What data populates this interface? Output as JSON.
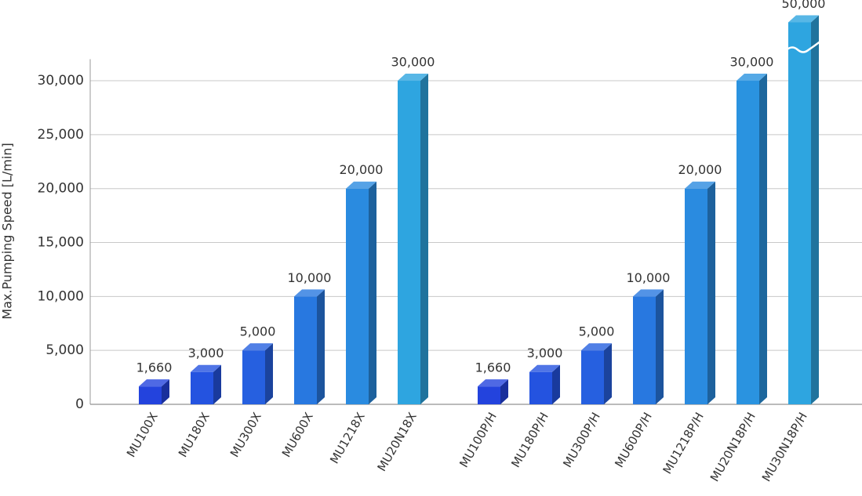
{
  "chart_data": {
    "type": "bar3d",
    "ylabel": "Max.Pumping Speed [L/min]",
    "ylim": [
      0,
      32000
    ],
    "yticks": [
      0,
      {
        "value": 5000,
        "label": "5,000"
      },
      {
        "value": 10000,
        "label": "10,000"
      },
      {
        "value": 15000,
        "label": "15,000"
      },
      {
        "value": 20000,
        "label": "20,000"
      },
      {
        "value": 25000,
        "label": "25,000"
      },
      {
        "value": 30000,
        "label": "30,000"
      }
    ],
    "grid": true,
    "groups": [
      {
        "categories": [
          "MU100X",
          "MU180X",
          "MU300X",
          "MU600X",
          "MU1218X",
          "MU20N18X"
        ],
        "values": [
          1660,
          3000,
          5000,
          10000,
          20000,
          30000
        ],
        "value_labels": [
          "1,660",
          "3,000",
          "5,000",
          "10,000",
          "20,000",
          "30,000"
        ],
        "colors": [
          "#2343dd",
          "#2453e0",
          "#2660e0",
          "#2878e0",
          "#2a8be0",
          "#2ea5e0"
        ]
      },
      {
        "categories": [
          "MU100P/H",
          "MU180P/H",
          "MU300P/H",
          "MU600P/H",
          "MU1218P/H",
          "MU20N18P/H",
          "MU30N18P/H"
        ],
        "values": [
          1660,
          3000,
          5000,
          10000,
          20000,
          30000,
          50000
        ],
        "value_labels": [
          "1,660",
          "3,000",
          "5,000",
          "10,000",
          "20,000",
          "30,000",
          "50,000"
        ],
        "colors": [
          "#2343dd",
          "#2453e0",
          "#2660e0",
          "#2878e0",
          "#2a8be0",
          "#2a93e0",
          "#2ea5e0"
        ]
      }
    ]
  }
}
